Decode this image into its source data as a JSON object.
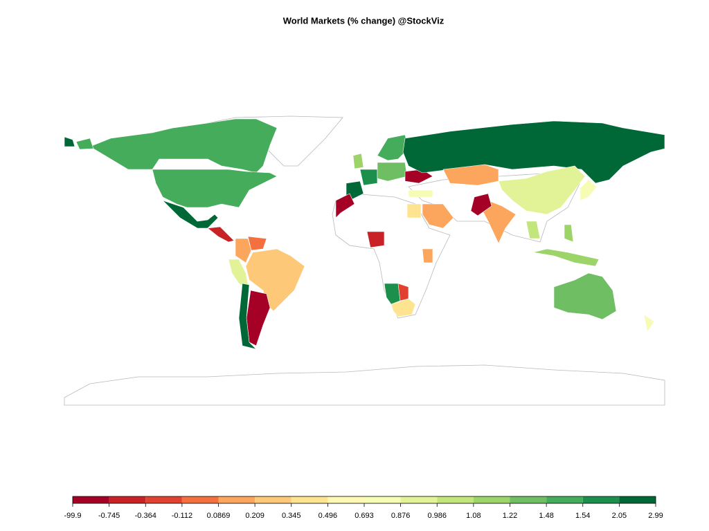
{
  "chart_data": {
    "type": "choropleth",
    "title": "World Markets (% change) @StockViz",
    "values": [
      1.5,
      1.5,
      2.5,
      -0.5,
      0.15,
      0.0,
      0.93,
      0.3,
      -1,
      2.5,
      2.5,
      1.8,
      1.15,
      1.3,
      1.5,
      -1,
      0.8,
      2.5,
      0.15,
      0.93,
      0.15,
      -1,
      0.15,
      0.4,
      -1,
      -0.5,
      0.15,
      1.8,
      -0.2,
      0.4,
      1.3,
      1.15,
      0.8,
      0.8,
      1.03,
      1.15
    ],
    "legend": {
      "breaks": [
        -99.9,
        -0.745,
        -0.364,
        -0.112,
        0.0869,
        0.209,
        0.345,
        0.496,
        0.693,
        0.876,
        0.986,
        1.08,
        1.22,
        1.48,
        1.54,
        2.05,
        2.99
      ],
      "colors": [
        "#a50026",
        "#c82227",
        "#e0422f",
        "#f4703f",
        "#fca55d",
        "#fdc978",
        "#fee491",
        "#fff8b4",
        "#f7fcb5",
        "#e2f397",
        "#c2e57c",
        "#9cd46a",
        "#6fbe63",
        "#45ac5c",
        "#1d8f4d",
        "#006837"
      ]
    }
  }
}
